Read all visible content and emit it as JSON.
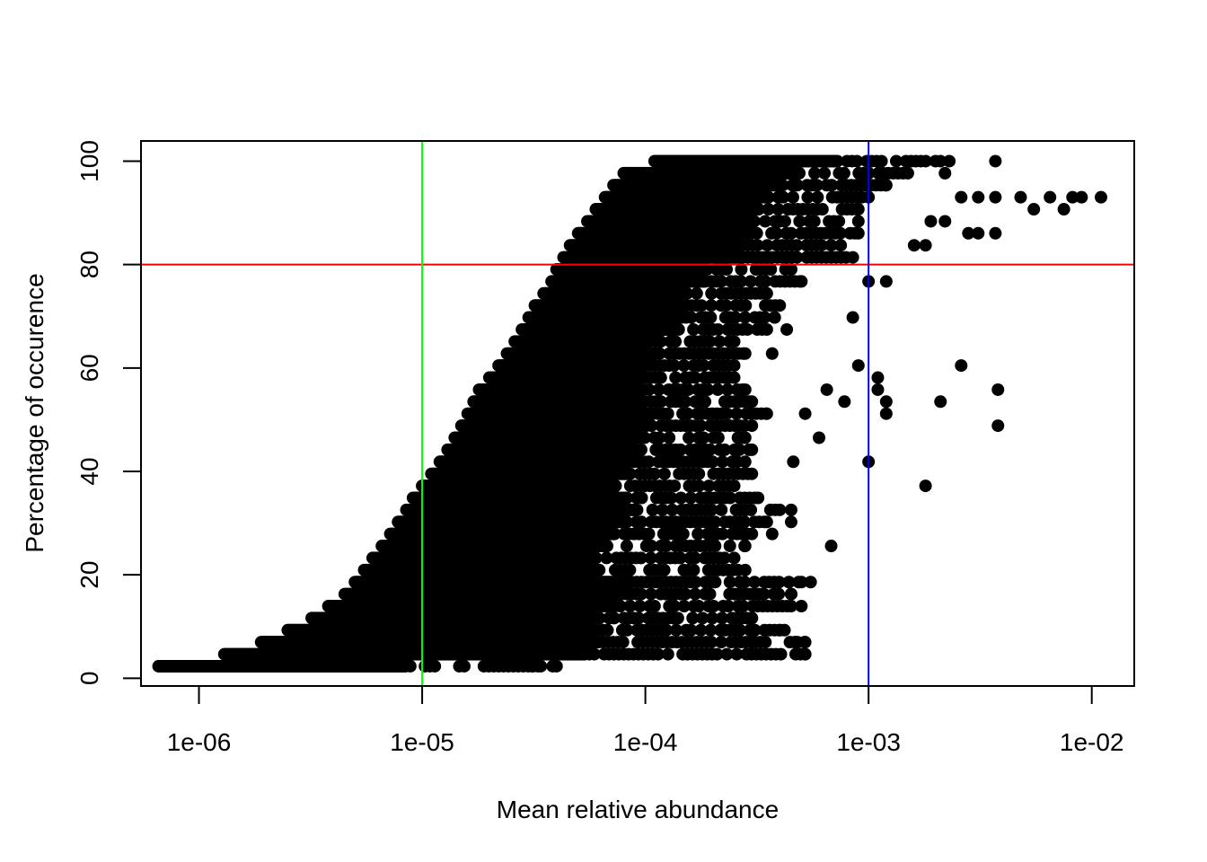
{
  "chart_data": {
    "type": "scatter",
    "title": "",
    "xlabel": "Mean relative abundance",
    "ylabel": "Percentage of occurence",
    "x_scale": "log",
    "xlim": [
      5.5e-07,
      0.0155
    ],
    "ylim": [
      -1.5,
      103.9
    ],
    "x_ticks": [
      {
        "value": 1e-06,
        "label": "1e-06"
      },
      {
        "value": 1e-05,
        "label": "1e-05"
      },
      {
        "value": 0.0001,
        "label": "1e-04"
      },
      {
        "value": 0.001,
        "label": "1e-03"
      },
      {
        "value": 0.01,
        "label": "1e-02"
      }
    ],
    "y_ticks": [
      {
        "value": 0,
        "label": "0"
      },
      {
        "value": 20,
        "label": "20"
      },
      {
        "value": 40,
        "label": "40"
      },
      {
        "value": 60,
        "label": "60"
      },
      {
        "value": 80,
        "label": "80"
      },
      {
        "value": 100,
        "label": "100"
      }
    ],
    "grid": false,
    "point_color": "#000000",
    "reference_lines": [
      {
        "orientation": "horizontal",
        "value": 80,
        "color": "#ff0000"
      },
      {
        "orientation": "vertical",
        "value": 1e-05,
        "color": "#00ff00"
      },
      {
        "orientation": "vertical",
        "value": 0.001,
        "color": "#0000ff"
      }
    ],
    "envelope": {
      "y_levels": [
        2.33,
        4.65,
        6.98,
        9.3,
        11.63,
        13.95,
        16.28,
        18.6,
        20.93,
        23.26,
        25.58,
        27.91,
        30.23,
        32.56,
        34.88,
        37.21,
        39.53,
        41.86,
        44.19,
        46.51,
        48.84,
        51.16,
        53.49,
        55.81,
        58.14,
        60.47,
        62.79,
        65.12,
        67.44,
        69.77,
        72.09,
        74.42,
        76.74,
        79.07,
        81.4,
        83.72,
        86.05,
        88.37,
        90.7,
        93.02,
        95.35,
        97.67,
        100
      ],
      "x_min": [
        6.6e-07,
        1.3e-06,
        1.9e-06,
        2.5e-06,
        3.2e-06,
        3.8e-06,
        4.5e-06,
        5e-06,
        5.5e-06,
        6e-06,
        6.6e-06,
        7.2e-06,
        7.8e-06,
        8.5e-06,
        9.1e-06,
        1e-05,
        1.1e-05,
        1.2e-05,
        1.3e-05,
        1.4e-05,
        1.5e-05,
        1.6e-05,
        1.7e-05,
        1.8e-05,
        2e-05,
        2.2e-05,
        2.4e-05,
        2.6e-05,
        2.8e-05,
        3e-05,
        3.2e-05,
        3.5e-05,
        3.8e-05,
        4e-05,
        4.3e-05,
        4.6e-05,
        5e-05,
        5.5e-05,
        6e-05,
        6.6e-05,
        7.2e-05,
        8e-05,
        0.00011
      ],
      "x_max": [
        4e-05,
        0.00052,
        0.00052,
        0.0004,
        0.0003,
        0.00045,
        0.00045,
        0.0005,
        0.00028,
        0.00025,
        0.00028,
        0.0003,
        0.00035,
        0.0004,
        0.00032,
        0.00025,
        0.0003,
        0.00028,
        0.0003,
        0.00028,
        0.0003,
        0.00035,
        0.0003,
        0.00028,
        0.00025,
        0.00025,
        0.00028,
        0.00025,
        0.00035,
        0.00038,
        0.0004,
        0.00035,
        0.0005,
        0.00045,
        0.00085,
        0.00075,
        0.0009,
        0.0009,
        0.0009,
        0.001,
        0.0012,
        0.0015,
        0.0023
      ]
    },
    "sparse_points": [
      {
        "x": 6.6e-07,
        "y": 2.33
      },
      {
        "x": 3.1e-05,
        "y": 2.33
      },
      {
        "x": 3.4e-05,
        "y": 2.33
      },
      {
        "x": 0.00052,
        "y": 4.65
      },
      {
        "x": 0.00048,
        "y": 6.98
      },
      {
        "x": 0.0003,
        "y": 6.98
      },
      {
        "x": 0.00042,
        "y": 9.3
      },
      {
        "x": 0.0003,
        "y": 11.63
      },
      {
        "x": 0.0005,
        "y": 13.95
      },
      {
        "x": 0.00045,
        "y": 16.28
      },
      {
        "x": 0.00055,
        "y": 18.6
      },
      {
        "x": 0.00068,
        "y": 25.58
      },
      {
        "x": 0.00037,
        "y": 27.91
      },
      {
        "x": 0.00045,
        "y": 30.23
      },
      {
        "x": 0.00045,
        "y": 32.56
      },
      {
        "x": 0.0018,
        "y": 37.21
      },
      {
        "x": 0.001,
        "y": 41.86
      },
      {
        "x": 0.00046,
        "y": 41.86
      },
      {
        "x": 0.0006,
        "y": 46.51
      },
      {
        "x": 0.0038,
        "y": 48.84
      },
      {
        "x": 0.00052,
        "y": 51.16
      },
      {
        "x": 0.0012,
        "y": 51.16
      },
      {
        "x": 0.0021,
        "y": 53.49
      },
      {
        "x": 0.00078,
        "y": 53.49
      },
      {
        "x": 0.0012,
        "y": 53.49
      },
      {
        "x": 0.0038,
        "y": 55.81
      },
      {
        "x": 0.0011,
        "y": 55.81
      },
      {
        "x": 0.00065,
        "y": 55.81
      },
      {
        "x": 0.0011,
        "y": 58.14
      },
      {
        "x": 0.0009,
        "y": 60.47
      },
      {
        "x": 0.0026,
        "y": 60.47
      },
      {
        "x": 0.00037,
        "y": 62.79
      },
      {
        "x": 0.00043,
        "y": 67.44
      },
      {
        "x": 0.00085,
        "y": 69.77
      },
      {
        "x": 0.0012,
        "y": 76.74
      },
      {
        "x": 0.001,
        "y": 76.74
      },
      {
        "x": 0.0016,
        "y": 83.72
      },
      {
        "x": 0.0018,
        "y": 83.72
      },
      {
        "x": 0.0037,
        "y": 86.05
      },
      {
        "x": 0.0028,
        "y": 86.05
      },
      {
        "x": 0.0031,
        "y": 86.05
      },
      {
        "x": 0.0022,
        "y": 88.37
      },
      {
        "x": 0.0019,
        "y": 88.37
      },
      {
        "x": 0.0055,
        "y": 90.7
      },
      {
        "x": 0.0075,
        "y": 90.7
      },
      {
        "x": 0.0048,
        "y": 93.02
      },
      {
        "x": 0.0065,
        "y": 93.02
      },
      {
        "x": 0.0082,
        "y": 93.02
      },
      {
        "x": 0.009,
        "y": 93.02
      },
      {
        "x": 0.011,
        "y": 93.02
      },
      {
        "x": 0.0026,
        "y": 93.02
      },
      {
        "x": 0.0031,
        "y": 93.02
      },
      {
        "x": 0.0037,
        "y": 93.02
      },
      {
        "x": 0.0037,
        "y": 100
      },
      {
        "x": 0.0022,
        "y": 97.67
      }
    ]
  }
}
